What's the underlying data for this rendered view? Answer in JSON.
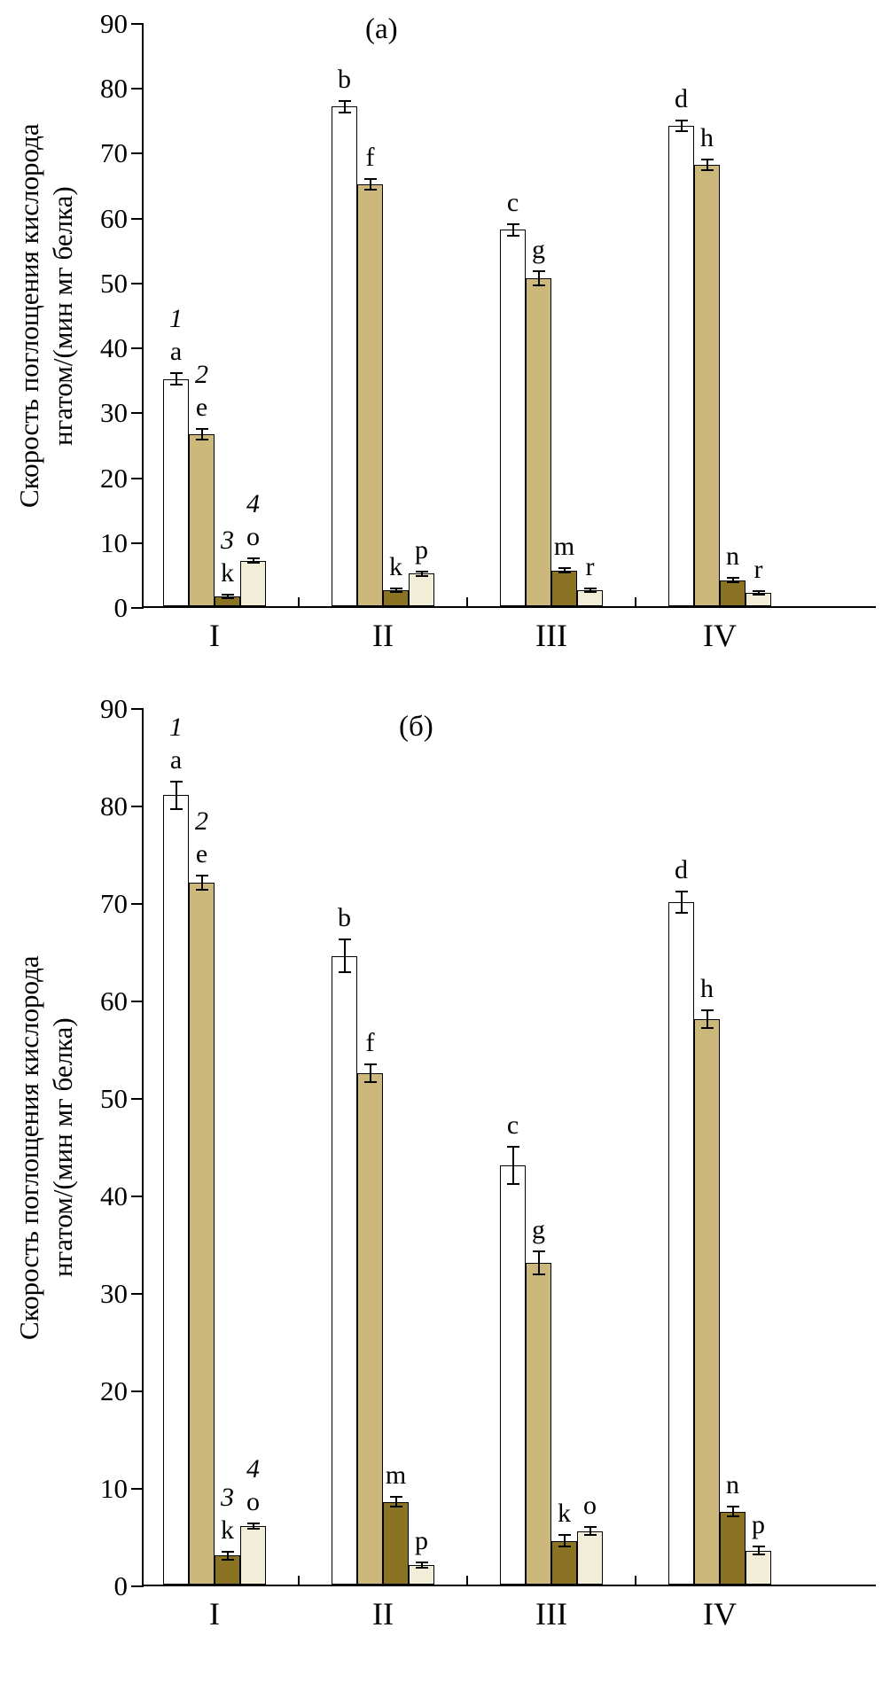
{
  "figure": {
    "background": "#ffffff",
    "axis_color": "#000000"
  },
  "chart_data": [
    {
      "type": "bar",
      "panel_label": "(а)",
      "ylabel_lines": [
        "Скорость поглощения кислорода",
        "нгатом/(мин мг белка)"
      ],
      "ylabel": "Скорость поглощения кислорода нгатом/(мин мг белка)",
      "xlabel": "",
      "ylim": [
        0,
        90
      ],
      "yticks": [
        0,
        10,
        20,
        30,
        40,
        50,
        60,
        70,
        80,
        90
      ],
      "categories": [
        "I",
        "II",
        "III",
        "IV"
      ],
      "grid": false,
      "legend_position": "none",
      "series": [
        {
          "name": "1",
          "color": "#ffffff"
        },
        {
          "name": "2",
          "color": "#cdb87c"
        },
        {
          "name": "3",
          "color": "#8a7322"
        },
        {
          "name": "4",
          "color": "#f2edd7"
        }
      ],
      "groups": [
        {
          "category": "I",
          "bars": [
            {
              "series": "1",
              "value": 35,
              "err": 1.0,
              "letter": "a",
              "series_label": "1"
            },
            {
              "series": "2",
              "value": 26.5,
              "err": 1.0,
              "letter": "e",
              "series_label": "2"
            },
            {
              "series": "3",
              "value": 1.5,
              "err": 0.4,
              "letter": "k",
              "series_label": "3"
            },
            {
              "series": "4",
              "value": 7,
              "err": 0.5,
              "letter": "o",
              "series_label": "4"
            }
          ]
        },
        {
          "category": "II",
          "bars": [
            {
              "series": "1",
              "value": 77,
              "err": 1.0,
              "letter": "b"
            },
            {
              "series": "2",
              "value": 65,
              "err": 1.0,
              "letter": "f"
            },
            {
              "series": "3",
              "value": 2.5,
              "err": 0.4,
              "letter": "k"
            },
            {
              "series": "4",
              "value": 5,
              "err": 0.5,
              "letter": "p"
            }
          ]
        },
        {
          "category": "III",
          "bars": [
            {
              "series": "1",
              "value": 58,
              "err": 1.0,
              "letter": "c"
            },
            {
              "series": "2",
              "value": 50.5,
              "err": 1.2,
              "letter": "g"
            },
            {
              "series": "3",
              "value": 5.5,
              "err": 0.5,
              "letter": "m"
            },
            {
              "series": "4",
              "value": 2.5,
              "err": 0.4,
              "letter": "r"
            }
          ]
        },
        {
          "category": "IV",
          "bars": [
            {
              "series": "1",
              "value": 74,
              "err": 1.0,
              "letter": "d"
            },
            {
              "series": "2",
              "value": 68,
              "err": 1.0,
              "letter": "h"
            },
            {
              "series": "3",
              "value": 4,
              "err": 0.5,
              "letter": "n"
            },
            {
              "series": "4",
              "value": 2,
              "err": 0.4,
              "letter": "r"
            }
          ]
        }
      ]
    },
    {
      "type": "bar",
      "panel_label": "(б)",
      "ylabel_lines": [
        "Скорость поглощения кислорода",
        "нгатом/(мин мг белка)"
      ],
      "ylabel": "Скорость поглощения кислорода нгатом/(мин мг белка)",
      "xlabel": "",
      "ylim": [
        0,
        90
      ],
      "yticks": [
        0,
        10,
        20,
        30,
        40,
        50,
        60,
        70,
        80,
        90
      ],
      "categories": [
        "I",
        "II",
        "III",
        "IV"
      ],
      "grid": false,
      "legend_position": "none",
      "series": [
        {
          "name": "1",
          "color": "#ffffff"
        },
        {
          "name": "2",
          "color": "#cdb87c"
        },
        {
          "name": "3",
          "color": "#8a7322"
        },
        {
          "name": "4",
          "color": "#f2edd7"
        }
      ],
      "groups": [
        {
          "category": "I",
          "bars": [
            {
              "series": "1",
              "value": 81,
              "err": 1.5,
              "letter": "a",
              "series_label": "1"
            },
            {
              "series": "2",
              "value": 72,
              "err": 0.8,
              "letter": "e",
              "series_label": "2"
            },
            {
              "series": "3",
              "value": 3,
              "err": 0.5,
              "letter": "k",
              "series_label": "3"
            },
            {
              "series": "4",
              "value": 6,
              "err": 0.4,
              "letter": "o",
              "series_label": "4"
            }
          ]
        },
        {
          "category": "II",
          "bars": [
            {
              "series": "1",
              "value": 64.5,
              "err": 1.8,
              "letter": "b"
            },
            {
              "series": "2",
              "value": 52.5,
              "err": 1.0,
              "letter": "f"
            },
            {
              "series": "3",
              "value": 8.5,
              "err": 0.6,
              "letter": "m"
            },
            {
              "series": "4",
              "value": 2,
              "err": 0.4,
              "letter": "p"
            }
          ]
        },
        {
          "category": "III",
          "bars": [
            {
              "series": "1",
              "value": 43,
              "err": 2.0,
              "letter": "c"
            },
            {
              "series": "2",
              "value": 33,
              "err": 1.3,
              "letter": "g"
            },
            {
              "series": "3",
              "value": 4.5,
              "err": 0.7,
              "letter": "k"
            },
            {
              "series": "4",
              "value": 5.5,
              "err": 0.5,
              "letter": "o"
            }
          ]
        },
        {
          "category": "IV",
          "bars": [
            {
              "series": "1",
              "value": 70,
              "err": 1.2,
              "letter": "d"
            },
            {
              "series": "2",
              "value": 58,
              "err": 1.0,
              "letter": "h"
            },
            {
              "series": "3",
              "value": 7.5,
              "err": 0.6,
              "letter": "n"
            },
            {
              "series": "4",
              "value": 3.5,
              "err": 0.5,
              "letter": "p"
            }
          ]
        }
      ]
    }
  ]
}
